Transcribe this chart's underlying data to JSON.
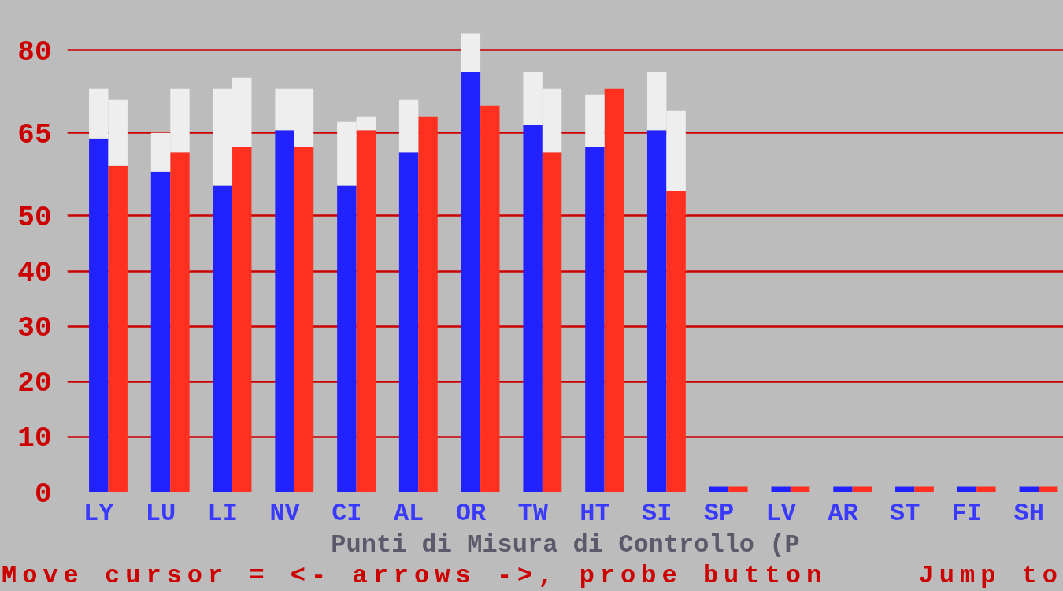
{
  "chart_data": {
    "type": "bar",
    "categories": [
      "LY",
      null,
      "LU",
      null,
      "LI",
      null,
      "NV",
      null,
      "CI",
      null,
      "AL",
      null,
      "OR",
      null,
      "TW",
      null,
      "HT",
      null,
      "SI",
      null,
      "SP",
      null,
      "LV",
      null,
      "AR",
      null,
      "ST",
      null,
      "FI",
      null,
      "SH",
      null
    ],
    "xlabel": "Punti di Misura di Controllo (P",
    "ylim": [
      0,
      89
    ],
    "yticks": [
      0,
      10,
      20,
      30,
      40,
      50,
      65,
      80
    ],
    "grid": "y",
    "stacked": true,
    "series": [
      {
        "colors": [
          "#2222ff",
          "#ff3020",
          "#2222ff",
          "#ff3020",
          "#2222ff",
          "#ff3020",
          "#2222ff",
          "#ff3020",
          "#2222ff",
          "#ff3020",
          "#2222ff",
          "#ff3020",
          "#2222ff",
          "#ff3020",
          "#2222ff",
          "#ff3020",
          "#2222ff",
          "#ff3020",
          "#2222ff",
          "#ff3020",
          "#2222ff",
          "#ff3020",
          "#2222ff",
          "#ff3020",
          "#2222ff",
          "#ff3020",
          "#2222ff",
          "#ff3020",
          "#2222ff",
          "#ff3020",
          "#2222ff",
          "#ff3020"
        ],
        "values": [
          64,
          59,
          58,
          61.5,
          55.5,
          62.5,
          65.5,
          62.5,
          55.5,
          65.5,
          61.5,
          68,
          76,
          70,
          66.5,
          61.5,
          62.5,
          73,
          65.5,
          54.5,
          1,
          1,
          1,
          1,
          1,
          1,
          1,
          1,
          1,
          1,
          1,
          1
        ]
      },
      {
        "color": "#eeeeee",
        "values": [
          9,
          12,
          7,
          11.5,
          17.5,
          12.5,
          7.5,
          10.5,
          11.5,
          2.5,
          9.5,
          null,
          7,
          null,
          9.5,
          11.5,
          9.5,
          null,
          10.5,
          14.5,
          null,
          null,
          null,
          null,
          null,
          null,
          null,
          null,
          null,
          null,
          null,
          null
        ]
      }
    ],
    "annotations": [
      "Move cursor = <- arrows ->, probe button",
      "Jump to"
    ]
  }
}
